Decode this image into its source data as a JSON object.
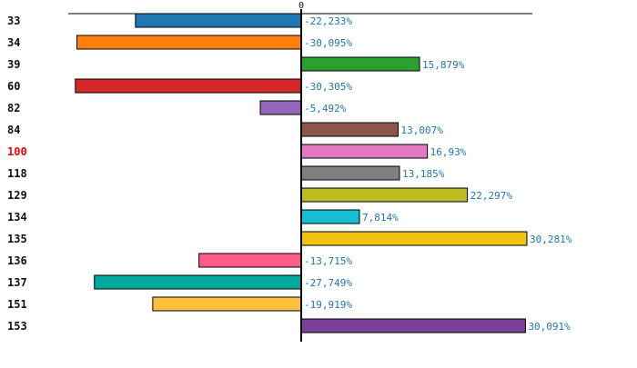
{
  "chart_data": {
    "type": "bar",
    "orientation": "horizontal",
    "title": "",
    "xlabel": "",
    "ylabel": "",
    "zero_tick_label": "0",
    "xlim": [
      -31,
      31
    ],
    "highlight_color": "#ff0000",
    "highlight_category": "100",
    "categories": [
      "33",
      "34",
      "39",
      "60",
      "82",
      "84",
      "100",
      "118",
      "129",
      "134",
      "135",
      "136",
      "137",
      "151",
      "153"
    ],
    "values": [
      -22.233,
      -30.095,
      15.879,
      -30.305,
      -5.492,
      13.007,
      16.93,
      13.185,
      22.297,
      7.814,
      30.281,
      -13.715,
      -27.749,
      -19.919,
      30.091
    ],
    "value_labels": [
      "-22,233%",
      "-30,095%",
      "15,879%",
      "-30,305%",
      "-5,492%",
      "13,007%",
      "16,93%",
      "13,185%",
      "22,297%",
      "7,814%",
      "30,281%",
      "-13,715%",
      "-27,749%",
      "-19,919%",
      "30,091%"
    ],
    "colors": [
      "#1f77b4",
      "#ff7f0e",
      "#2ca02c",
      "#d62728",
      "#9467bd",
      "#8c564b",
      "#e377c2",
      "#7f7f7f",
      "#bcbd22",
      "#17becf",
      "#f1c40f",
      "#ff5c8a",
      "#00a99d",
      "#ffc03d",
      "#7b3f98"
    ]
  }
}
